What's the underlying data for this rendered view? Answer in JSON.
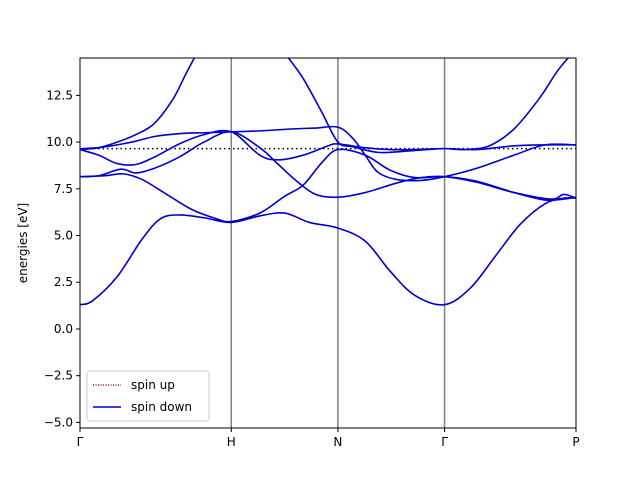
{
  "chart_data": {
    "type": "line",
    "title": "",
    "xlabel": "",
    "ylabel": "energies [eV]",
    "ylim": [
      -5.3,
      14.5
    ],
    "yticks": [
      -5.0,
      -2.5,
      0.0,
      2.5,
      5.0,
      7.5,
      10.0,
      12.5
    ],
    "ytick_labels": [
      "−5.0",
      "−2.5",
      "0.0",
      "2.5",
      "5.0",
      "7.5",
      "10.0",
      "12.5"
    ],
    "xlim": [
      0,
      4
    ],
    "kpoints": [
      {
        "label": "Γ",
        "x": 0
      },
      {
        "label": "H",
        "x": 1.22
      },
      {
        "label": "N",
        "x": 2.08
      },
      {
        "label": "Γ",
        "x": 2.94
      },
      {
        "label": "P",
        "x": 4
      }
    ],
    "fermi_level": 9.65,
    "grid": false,
    "legend_position": "lower-left",
    "colors": {
      "spin_up": "#cc0033",
      "spin_down": "#0000cc",
      "vlines": "#808080",
      "fermi": "#000000"
    },
    "series": [
      {
        "name": "spin up",
        "style": "dotted",
        "color": "#cc0033",
        "bands": []
      },
      {
        "name": "spin down",
        "style": "solid",
        "color": "#0000cc",
        "bands": [
          {
            "x": [
              0,
              0.1,
              0.3,
              0.5,
              0.65,
              0.8,
              1.0,
              1.22,
              1.45,
              1.65,
              1.85,
              2.08,
              2.3,
              2.5,
              2.7,
              2.94,
              3.15,
              3.35,
              3.55,
              3.75,
              3.9,
              4.0
            ],
            "y": [
              1.3,
              1.5,
              2.8,
              4.8,
              5.9,
              6.1,
              5.95,
              5.7,
              6.05,
              6.2,
              5.7,
              5.4,
              4.7,
              3.1,
              1.8,
              1.3,
              2.2,
              3.9,
              5.6,
              6.7,
              7.0,
              7.0
            ]
          },
          {
            "x": [
              0,
              0.2,
              0.35,
              0.5,
              0.7,
              0.9,
              1.1,
              1.22,
              1.45,
              1.65,
              1.8,
              1.95,
              2.08,
              2.3,
              2.5,
              2.7,
              2.94,
              3.2,
              3.5,
              3.75,
              3.9,
              4.0
            ],
            "y": [
              8.15,
              8.2,
              8.3,
              8.0,
              7.2,
              6.4,
              5.9,
              5.75,
              6.2,
              7.1,
              7.7,
              8.9,
              9.6,
              9.3,
              8.5,
              8.1,
              8.15,
              7.9,
              7.3,
              6.9,
              6.95,
              7.05
            ]
          },
          {
            "x": [
              0,
              0.15,
              0.33,
              0.45,
              0.6,
              0.8,
              1.0,
              1.22,
              1.45,
              1.6,
              1.75,
              1.9,
              2.08,
              2.3,
              2.55,
              2.75,
              2.94,
              3.2,
              3.5,
              3.8,
              3.9,
              4.0
            ],
            "y": [
              8.15,
              8.2,
              8.55,
              8.35,
              8.6,
              9.2,
              10.0,
              10.55,
              9.7,
              8.8,
              7.9,
              7.2,
              7.05,
              7.3,
              7.8,
              8.1,
              8.15,
              7.85,
              7.3,
              6.95,
              7.2,
              7.0
            ]
          },
          {
            "x": [
              0,
              0.15,
              0.3,
              0.45,
              0.6,
              0.8,
              1.0,
              1.22,
              1.45,
              1.6,
              1.8,
              2.0,
              2.08,
              2.3,
              2.5,
              2.7,
              2.94,
              3.2,
              3.5,
              3.75,
              4.0
            ],
            "y": [
              9.6,
              9.3,
              8.85,
              8.8,
              9.2,
              9.9,
              10.4,
              10.55,
              9.3,
              9.05,
              9.3,
              9.8,
              9.9,
              9.7,
              9.6,
              9.6,
              9.65,
              9.6,
              9.8,
              9.85,
              9.85
            ]
          },
          {
            "x": [
              0,
              0.15,
              0.3,
              0.45,
              0.6,
              0.8,
              1.0,
              1.22,
              1.45,
              1.7,
              1.9,
              2.08,
              2.2,
              2.3,
              2.4,
              2.55,
              2.75,
              2.94,
              3.2,
              3.5,
              3.75,
              4.0
            ],
            "y": [
              9.65,
              9.7,
              9.85,
              10.05,
              10.3,
              10.45,
              10.5,
              10.55,
              10.6,
              10.7,
              10.75,
              10.8,
              10.2,
              9.3,
              8.4,
              8.0,
              7.95,
              8.15,
              8.6,
              9.3,
              9.85,
              9.85
            ]
          },
          {
            "x": [
              0,
              0.15,
              0.3,
              0.45,
              0.6,
              0.75,
              0.85,
              0.93
            ],
            "y": [
              9.6,
              9.7,
              10.0,
              10.4,
              11.0,
              12.3,
              13.6,
              14.6
            ]
          },
          {
            "x": [
              1.67,
              1.8,
              1.95,
              2.08,
              2.2,
              2.4,
              2.6,
              2.8,
              2.94,
              3.1,
              3.3,
              3.5,
              3.7,
              3.85,
              3.95
            ],
            "y": [
              14.6,
              13.4,
              11.6,
              10.0,
              9.75,
              9.45,
              9.5,
              9.6,
              9.65,
              9.6,
              9.8,
              10.7,
              12.3,
              13.8,
              14.6
            ]
          }
        ]
      }
    ]
  }
}
